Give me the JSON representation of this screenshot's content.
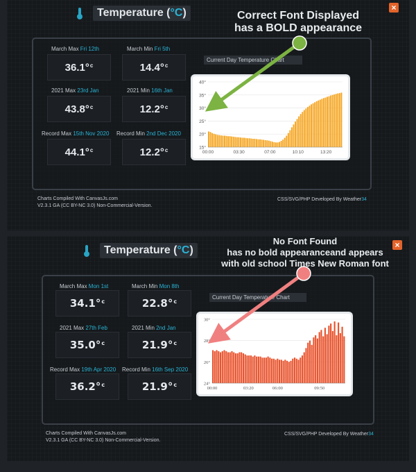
{
  "top": {
    "title": "Temperature (",
    "title_unit": "°C",
    "title_end": ")",
    "close_label": "×",
    "stats": [
      {
        "label": "March Max",
        "date": "Fri 12th",
        "value": "36.1°",
        "unit": "c"
      },
      {
        "label": "March Min",
        "date": "Fri 5th",
        "value": "14.4°",
        "unit": "c"
      },
      {
        "label": "2021 Max",
        "date": "23rd Jan",
        "value": "43.8°",
        "unit": "c"
      },
      {
        "label": "2021 Min",
        "date": "16th Jan",
        "value": "12.2°",
        "unit": "c"
      },
      {
        "label": "Record Max",
        "date": "15th Nov 2020",
        "value": "44.1°",
        "unit": "c"
      },
      {
        "label": "Record Min",
        "date": "2nd Dec 2020",
        "value": "12.2°",
        "unit": "c"
      }
    ],
    "chart_title": "Current Day Temperature Chart",
    "footer_line1": "Charts Compiled With CanvasJs.com",
    "footer_line2": "V2.3.1 GA (CC BY-NC 3.0) Non-Commercial-Version.",
    "footer_right": "CSS/SVG/PHP Developed By Weather",
    "footer_right_hl": "34",
    "annotation_line1": "Correct Font Displayed",
    "annotation_line2": "has a BOLD appearance",
    "annotation_color": "#7cb342"
  },
  "bottom": {
    "title": "Temperature (",
    "title_unit": "°C",
    "title_end": ")",
    "close_label": "×",
    "stats": [
      {
        "label": "March Max",
        "date": "Mon 1st",
        "value": "34.1°",
        "unit": "c"
      },
      {
        "label": "March Min",
        "date": "Mon 8th",
        "value": "22.8°",
        "unit": "c"
      },
      {
        "label": "2021 Max",
        "date": "27th Feb",
        "value": "35.0°",
        "unit": "c"
      },
      {
        "label": "2021 Min",
        "date": "2nd Jan",
        "value": "21.9°",
        "unit": "c"
      },
      {
        "label": "Record Max",
        "date": "19th Apr 2020",
        "value": "36.2°",
        "unit": "c"
      },
      {
        "label": "Record Min",
        "date": "16th Sep 2020",
        "value": "21.9°",
        "unit": "c"
      }
    ],
    "chart_title": "Current Day Temperature Chart",
    "footer_line1": "Charts Compiled With CanvasJs.com",
    "footer_line2": "V2.3.1 GA (CC BY-NC 3.0) Non-Commercial-Version.",
    "footer_right": "CSS/SVG/PHP Developed By Weather",
    "footer_right_hl": "34",
    "annotation_line1": "No Font Found",
    "annotation_line2": "has no bold appearanceand appears",
    "annotation_line3": "with old school Times New Roman font",
    "annotation_color": "#f08080"
  },
  "chart_data": [
    {
      "type": "bar",
      "color": "#f5a623",
      "ylim": [
        15,
        40
      ],
      "yticks": [
        "40°",
        "35°",
        "30°",
        "25°",
        "20°",
        "15°"
      ],
      "xticks": [
        "00:00",
        "03:30",
        "07:00",
        "10:10",
        "13:20"
      ],
      "x_tick_positions": [
        0,
        3.5,
        7,
        10.17,
        13.33
      ],
      "x_range": [
        0,
        15.2
      ],
      "values": [
        21,
        20.8,
        20.4,
        20.1,
        19.9,
        19.7,
        19.6,
        19.5,
        19.4,
        19.4,
        19.3,
        19.2,
        19.2,
        19.1,
        19.0,
        18.9,
        18.8,
        18.8,
        18.7,
        18.6,
        18.6,
        18.5,
        18.4,
        18.4,
        18.3,
        18.2,
        18.2,
        18.1,
        18.0,
        18.0,
        17.9,
        17.8,
        17.7,
        17.6,
        17.5,
        17.3,
        17.1,
        16.9,
        16.8,
        16.8,
        17.0,
        17.4,
        17.9,
        18.6,
        19.4,
        20.4,
        21.5,
        22.6,
        23.7,
        24.8,
        25.8,
        26.8,
        27.7,
        28.5,
        29.2,
        29.8,
        30.4,
        30.9,
        31.4,
        31.8,
        32.2,
        32.6,
        32.9,
        33.2,
        33.5,
        33.8,
        34.0,
        34.3,
        34.5,
        34.8,
        35.0,
        35.2,
        35.4,
        35.6,
        35.7,
        35.9
      ]
    },
    {
      "type": "bar",
      "color": "#e8532d",
      "ylim": [
        24,
        30
      ],
      "yticks": [
        "30°",
        "28°",
        "26°",
        "24°"
      ],
      "xticks": [
        "00:00",
        "03:20",
        "06:00",
        "09:50"
      ],
      "x_tick_positions": [
        0,
        3.33,
        6,
        9.83
      ],
      "x_range": [
        0,
        12.2
      ],
      "values": [
        27.1,
        27.0,
        27.1,
        27.0,
        26.9,
        27.0,
        27.1,
        27.0,
        26.9,
        26.9,
        27.0,
        26.9,
        26.8,
        26.8,
        26.9,
        26.9,
        26.8,
        26.7,
        26.6,
        26.6,
        26.6,
        26.5,
        26.6,
        26.5,
        26.5,
        26.5,
        26.4,
        26.4,
        26.4,
        26.5,
        26.4,
        26.3,
        26.3,
        26.2,
        26.3,
        26.2,
        26.2,
        26.1,
        26.2,
        26.1,
        26.0,
        26.1,
        26.3,
        26.4,
        26.3,
        26.2,
        26.4,
        26.6,
        26.9,
        27.3,
        27.8,
        28.0,
        27.6,
        28.3,
        28.5,
        28.2,
        28.8,
        29.0,
        28.4,
        29.2,
        28.6,
        29.4,
        29.6,
        28.9,
        29.8,
        28.5,
        29.7,
        28.7,
        29.3,
        28.4
      ]
    }
  ]
}
